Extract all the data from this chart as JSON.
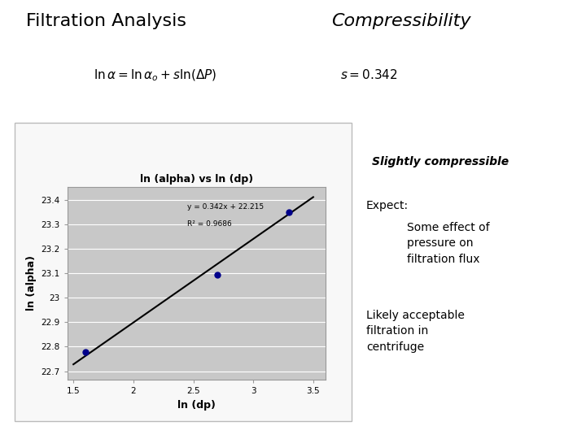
{
  "title_left": "Filtration Analysis",
  "title_right": "Compressibility",
  "plot_title": "ln (alpha) vs ln (dp)",
  "xlabel": "ln (dp)",
  "ylabel": "ln (alpha)",
  "data_x": [
    1.6,
    2.7,
    3.3
  ],
  "data_y": [
    22.78,
    23.095,
    23.35
  ],
  "trendline_x": [
    1.5,
    3.5
  ],
  "trendline_y": [
    22.728,
    23.412
  ],
  "equation_text": "y = 0.342x + 22.215",
  "r2_text": "R² = 0.9686",
  "ytick_vals": [
    22.7,
    22.8,
    22.9,
    23.0,
    23.1,
    23.2,
    23.3,
    23.4
  ],
  "ytick_labels": [
    "22.7",
    "22.8",
    "22.9",
    "23",
    "23.1",
    "23.2",
    "23.3",
    "23.4"
  ],
  "xtick_vals": [
    1.5,
    2.0,
    2.5,
    3.0,
    3.5
  ],
  "xtick_labels": [
    "1.5",
    "2",
    "2.5",
    "3",
    "3.5"
  ],
  "xlim": [
    1.45,
    3.6
  ],
  "ylim": [
    22.665,
    23.455
  ],
  "slightly_compressible": "Slightly compressible",
  "expect_label": "Expect:",
  "bullet1": "Some effect of\npressure on\nfiltration flux",
  "bullet2": "Likely acceptable\nfiltration in\ncentrifuge",
  "plot_bg": "#c8c8c8",
  "marker_color": "#00008b",
  "line_color": "#000000",
  "bg_color": "#ffffff",
  "point_size": 25,
  "frame_bg": "#f0f0f0"
}
